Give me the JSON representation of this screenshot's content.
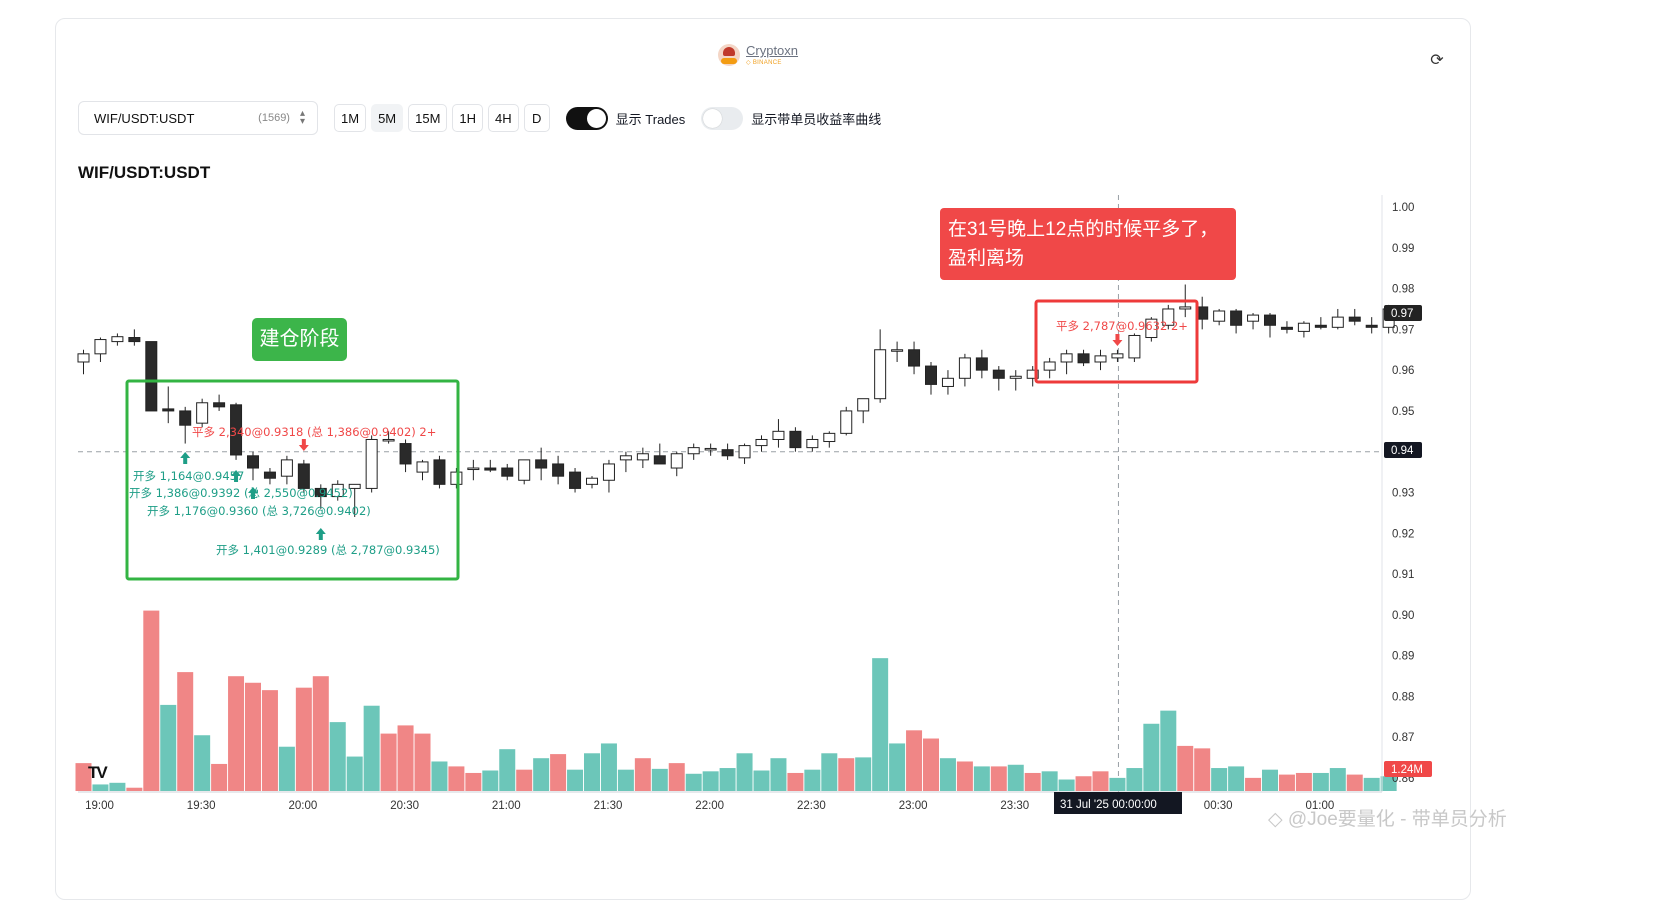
{
  "brand": {
    "name": "Cryptoxn",
    "sub": "◇ BINANCE"
  },
  "icons": {
    "refresh": "refresh-icon",
    "chevron": "chevron-up-down-icon",
    "tradingview": "tradingview-logo"
  },
  "controls": {
    "symbol": "WIF/USDT:USDT",
    "count": "(1569)",
    "timeframes": [
      "1M",
      "5M",
      "15M",
      "1H",
      "4H",
      "D"
    ],
    "active_timeframe": "5M",
    "toggle_trades": {
      "label": "显示 Trades",
      "on": true
    },
    "toggle_curve": {
      "label": "显示带单员收益率曲线",
      "on": false
    }
  },
  "chart_title": "WIF/USDT:USDT",
  "annotations": {
    "red_note": "在31号晚上12点的时候平多了，盈利离场",
    "green_note": "建仓阶段"
  },
  "watermark": "◇ @Joe要量化 - 带单员分析",
  "chart_data": {
    "type": "candlestick",
    "interval": "5m",
    "colors": {
      "up_volume": "#6cc6b9",
      "down_volume": "#f08686",
      "candle_up": "#ffffff",
      "candle_down": "#2a2a2a",
      "trade_buy": "#1e9e87",
      "trade_sell": "#f04848"
    },
    "x_tick_labels": [
      "19:00",
      "19:30",
      "20:00",
      "20:30",
      "21:00",
      "21:30",
      "22:00",
      "22:30",
      "23:00",
      "23:30",
      "00:00",
      "00:30",
      "01:00"
    ],
    "crosshair_label": "31 Jul '25   00:00:00",
    "y_tick_labels": [
      "1.00",
      "0.99",
      "0.98",
      "0.97",
      "0.96",
      "0.95",
      "0.94",
      "0.93",
      "0.92",
      "0.91",
      "0.90",
      "0.89",
      "0.88",
      "0.87",
      "0.86"
    ],
    "ylim": [
      0.857,
      1.003
    ],
    "last_price_label": "0.97",
    "crosshair_price_label": "0.94",
    "volume_label": "1.24M",
    "candles": [
      [
        0.962,
        0.965,
        0.959,
        0.964
      ],
      [
        0.964,
        0.968,
        0.962,
        0.9675
      ],
      [
        0.967,
        0.969,
        0.966,
        0.9682
      ],
      [
        0.968,
        0.97,
        0.966,
        0.967
      ],
      [
        0.967,
        0.967,
        0.95,
        0.95
      ],
      [
        0.9505,
        0.956,
        0.947,
        0.95
      ],
      [
        0.95,
        0.951,
        0.942,
        0.9465
      ],
      [
        0.947,
        0.953,
        0.946,
        0.952
      ],
      [
        0.952,
        0.954,
        0.95,
        0.951
      ],
      [
        0.9515,
        0.952,
        0.938,
        0.9392
      ],
      [
        0.939,
        0.94,
        0.933,
        0.936
      ],
      [
        0.935,
        0.936,
        0.932,
        0.9335
      ],
      [
        0.934,
        0.939,
        0.932,
        0.938
      ],
      [
        0.937,
        0.938,
        0.93,
        0.931
      ],
      [
        0.931,
        0.932,
        0.926,
        0.929
      ],
      [
        0.929,
        0.933,
        0.928,
        0.932
      ],
      [
        0.931,
        0.932,
        0.924,
        0.932
      ],
      [
        0.931,
        0.944,
        0.93,
        0.943
      ],
      [
        0.943,
        0.945,
        0.942,
        0.943
      ],
      [
        0.942,
        0.943,
        0.935,
        0.937
      ],
      [
        0.935,
        0.938,
        0.933,
        0.9375
      ],
      [
        0.938,
        0.939,
        0.931,
        0.932
      ],
      [
        0.932,
        0.936,
        0.931,
        0.935
      ],
      [
        0.936,
        0.938,
        0.933,
        0.936
      ],
      [
        0.936,
        0.938,
        0.935,
        0.9355
      ],
      [
        0.936,
        0.937,
        0.933,
        0.934
      ],
      [
        0.933,
        0.938,
        0.932,
        0.938
      ],
      [
        0.938,
        0.941,
        0.933,
        0.936
      ],
      [
        0.937,
        0.939,
        0.932,
        0.934
      ],
      [
        0.935,
        0.936,
        0.93,
        0.931
      ],
      [
        0.932,
        0.934,
        0.931,
        0.9335
      ],
      [
        0.933,
        0.938,
        0.93,
        0.937
      ],
      [
        0.938,
        0.94,
        0.935,
        0.939
      ],
      [
        0.938,
        0.941,
        0.936,
        0.9395
      ],
      [
        0.939,
        0.942,
        0.937,
        0.937
      ],
      [
        0.936,
        0.94,
        0.934,
        0.9395
      ],
      [
        0.9395,
        0.942,
        0.938,
        0.941
      ],
      [
        0.9405,
        0.942,
        0.939,
        0.9408
      ],
      [
        0.9405,
        0.942,
        0.938,
        0.939
      ],
      [
        0.9385,
        0.942,
        0.937,
        0.9415
      ],
      [
        0.9415,
        0.944,
        0.94,
        0.943
      ],
      [
        0.943,
        0.948,
        0.941,
        0.945
      ],
      [
        0.945,
        0.946,
        0.94,
        0.941
      ],
      [
        0.941,
        0.944,
        0.94,
        0.943
      ],
      [
        0.9425,
        0.945,
        0.941,
        0.9445
      ],
      [
        0.9445,
        0.951,
        0.944,
        0.95
      ],
      [
        0.95,
        0.953,
        0.947,
        0.953
      ],
      [
        0.953,
        0.97,
        0.952,
        0.965
      ],
      [
        0.965,
        0.967,
        0.962,
        0.965
      ],
      [
        0.965,
        0.967,
        0.959,
        0.961
      ],
      [
        0.961,
        0.962,
        0.954,
        0.9565
      ],
      [
        0.956,
        0.96,
        0.954,
        0.958
      ],
      [
        0.958,
        0.964,
        0.956,
        0.963
      ],
      [
        0.963,
        0.965,
        0.958,
        0.96
      ],
      [
        0.96,
        0.961,
        0.955,
        0.958
      ],
      [
        0.958,
        0.96,
        0.955,
        0.9585
      ],
      [
        0.958,
        0.961,
        0.956,
        0.96
      ],
      [
        0.96,
        0.963,
        0.958,
        0.962
      ],
      [
        0.962,
        0.965,
        0.959,
        0.964
      ],
      [
        0.964,
        0.965,
        0.961,
        0.9618
      ],
      [
        0.962,
        0.965,
        0.96,
        0.9635
      ],
      [
        0.963,
        0.965,
        0.962,
        0.964
      ],
      [
        0.963,
        0.969,
        0.962,
        0.9685
      ],
      [
        0.968,
        0.973,
        0.967,
        0.9725
      ],
      [
        0.971,
        0.976,
        0.97,
        0.975
      ],
      [
        0.975,
        0.981,
        0.973,
        0.9755
      ],
      [
        0.9755,
        0.978,
        0.97,
        0.9725
      ],
      [
        0.972,
        0.975,
        0.971,
        0.9745
      ],
      [
        0.9745,
        0.975,
        0.969,
        0.971
      ],
      [
        0.972,
        0.974,
        0.97,
        0.9735
      ],
      [
        0.9735,
        0.974,
        0.968,
        0.971
      ],
      [
        0.9705,
        0.972,
        0.969,
        0.97
      ],
      [
        0.9695,
        0.972,
        0.968,
        0.9715
      ],
      [
        0.971,
        0.973,
        0.97,
        0.9705
      ],
      [
        0.9705,
        0.975,
        0.97,
        0.973
      ],
      [
        0.973,
        0.975,
        0.971,
        0.972
      ],
      [
        0.971,
        0.973,
        0.969,
        0.9705
      ],
      [
        0.9705,
        0.976,
        0.969,
        0.975
      ]
    ],
    "volume": [
      [
        34,
        0
      ],
      [
        8,
        1
      ],
      [
        10,
        1
      ],
      [
        4,
        0
      ],
      [
        220,
        0
      ],
      [
        105,
        1
      ],
      [
        145,
        0
      ],
      [
        68,
        1
      ],
      [
        33,
        0
      ],
      [
        140,
        0
      ],
      [
        132,
        0
      ],
      [
        123,
        0
      ],
      [
        54,
        1
      ],
      [
        126,
        0
      ],
      [
        140,
        0
      ],
      [
        84,
        1
      ],
      [
        42,
        1
      ],
      [
        104,
        1
      ],
      [
        70,
        0
      ],
      [
        80,
        0
      ],
      [
        70,
        0
      ],
      [
        36,
        1
      ],
      [
        30,
        0
      ],
      [
        22,
        0
      ],
      [
        25,
        1
      ],
      [
        51,
        1
      ],
      [
        26,
        0
      ],
      [
        40,
        1
      ],
      [
        45,
        0
      ],
      [
        26,
        1
      ],
      [
        46,
        1
      ],
      [
        58,
        1
      ],
      [
        26,
        1
      ],
      [
        40,
        0
      ],
      [
        27,
        1
      ],
      [
        34,
        0
      ],
      [
        21,
        1
      ],
      [
        24,
        1
      ],
      [
        28,
        1
      ],
      [
        46,
        1
      ],
      [
        25,
        1
      ],
      [
        40,
        1
      ],
      [
        22,
        0
      ],
      [
        26,
        1
      ],
      [
        46,
        1
      ],
      [
        40,
        0
      ],
      [
        41,
        1
      ],
      [
        162,
        1
      ],
      [
        58,
        1
      ],
      [
        74,
        0
      ],
      [
        64,
        0
      ],
      [
        40,
        1
      ],
      [
        36,
        0
      ],
      [
        30,
        1
      ],
      [
        30,
        0
      ],
      [
        32,
        1
      ],
      [
        22,
        0
      ],
      [
        24,
        1
      ],
      [
        14,
        1
      ],
      [
        18,
        0
      ],
      [
        24,
        0
      ],
      [
        16,
        1
      ],
      [
        28,
        1
      ],
      [
        82,
        1
      ],
      [
        98,
        1
      ],
      [
        55,
        0
      ],
      [
        52,
        0
      ],
      [
        28,
        1
      ],
      [
        30,
        1
      ],
      [
        16,
        0
      ],
      [
        26,
        1
      ],
      [
        20,
        0
      ],
      [
        22,
        0
      ],
      [
        22,
        1
      ],
      [
        28,
        1
      ],
      [
        20,
        0
      ],
      [
        16,
        1
      ],
      [
        18,
        1
      ]
    ],
    "trades": [
      {
        "label": "开多 1,164@0.9457",
        "side": "long",
        "candle": 6
      },
      {
        "label": "平多 2,340@0.9318 (总 1,386@0.9402) 2+",
        "side": "close",
        "candle": 13
      },
      {
        "label": "开多 1,386@0.9392 (总 2,550@0.9452)",
        "side": "long",
        "candle": 9
      },
      {
        "label": "开多 1,176@0.9360 (总 3,726@0.9402)",
        "side": "long",
        "candle": 10
      },
      {
        "label": "开多 1,401@0.9289 (总 2,787@0.9345)",
        "side": "long",
        "candle": 14
      },
      {
        "label": "平多 2,787@0.9632 2+",
        "side": "close",
        "candle": 61
      }
    ]
  }
}
